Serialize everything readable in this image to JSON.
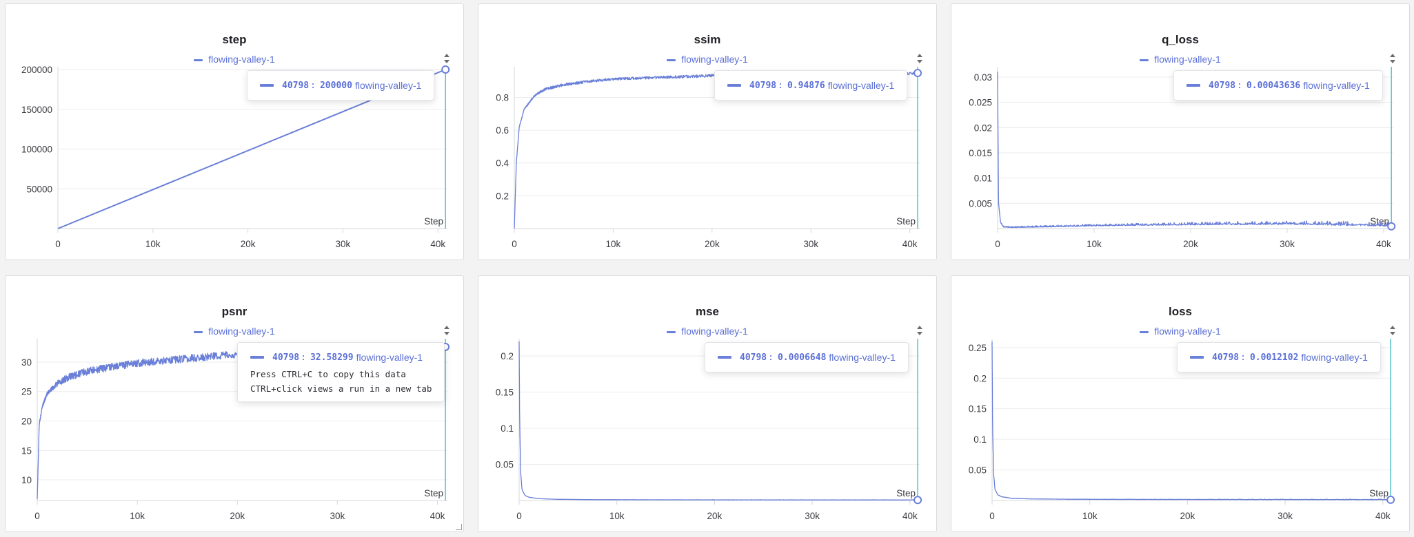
{
  "run_name": "flowing-valley-1",
  "accent_color": "#6a7fd8",
  "cursor_color": "#4fc3c8",
  "tooltip_hint": [
    "Press CTRL+C to copy this data",
    "CTRL+click views a run in a new tab"
  ],
  "chart_data": [
    {
      "id": "step",
      "type": "line",
      "title": "step",
      "xlabel": "Step",
      "ylabel": "",
      "x_ticks": [
        "0",
        "10k",
        "20k",
        "30k",
        "40k"
      ],
      "y_ticks": [
        "50000",
        "100000",
        "150000",
        "200000"
      ],
      "y_tick_values": [
        50000,
        100000,
        150000,
        200000
      ],
      "xlim": [
        0,
        41000
      ],
      "ylim": [
        0,
        200000
      ],
      "y_scale": "linear",
      "series": [
        {
          "name": "flowing-valley-1",
          "x": [
            0,
            40798
          ],
          "y": [
            0,
            200000
          ]
        }
      ],
      "shape": "linear",
      "tooltip": {
        "step": "40798",
        "value": "200000"
      }
    },
    {
      "id": "ssim",
      "type": "line",
      "title": "ssim",
      "xlabel": "Step",
      "ylabel": "",
      "x_ticks": [
        "0",
        "10k",
        "20k",
        "30k",
        "40k"
      ],
      "y_ticks": [
        "0.2",
        "0.4",
        "0.6",
        "0.8"
      ],
      "y_tick_values": [
        0.2,
        0.4,
        0.6,
        0.8
      ],
      "xlim": [
        0,
        41000
      ],
      "ylim": [
        0,
        0.97
      ],
      "y_scale": "linear",
      "series": [
        {
          "name": "flowing-valley-1",
          "x": [
            0,
            200,
            500,
            1000,
            2000,
            3000,
            5000,
            7500,
            10000,
            15000,
            20000,
            25000,
            30000,
            35000,
            40798
          ],
          "y": [
            0.0,
            0.4,
            0.62,
            0.73,
            0.81,
            0.85,
            0.88,
            0.9,
            0.915,
            0.925,
            0.935,
            0.94,
            0.943,
            0.946,
            0.94876
          ]
        }
      ],
      "shape": "rising",
      "noise": 0.012,
      "tooltip": {
        "step": "40798",
        "value": "0.94876"
      }
    },
    {
      "id": "q_loss",
      "type": "line",
      "title": "q_loss",
      "xlabel": "Step",
      "ylabel": "",
      "x_ticks": [
        "0",
        "10k",
        "20k",
        "30k",
        "40k"
      ],
      "y_ticks": [
        "0.005",
        "0.01",
        "0.015",
        "0.02",
        "0.025",
        "0.03"
      ],
      "y_tick_values": [
        0.005,
        0.01,
        0.015,
        0.02,
        0.025,
        0.03
      ],
      "xlim": [
        0,
        41000
      ],
      "ylim": [
        0,
        0.0315
      ],
      "y_scale": "linear",
      "series": [
        {
          "name": "flowing-valley-1",
          "x": [
            0,
            100,
            300,
            600,
            1500,
            5000,
            10000,
            20000,
            30000,
            40798
          ],
          "y": [
            0.031,
            0.005,
            0.0012,
            0.0003,
            0.0002,
            0.0003,
            0.0005,
            0.0007,
            0.0008,
            0.00043636
          ]
        }
      ],
      "shape": "decaying",
      "noise": 0.0009,
      "tooltip": {
        "step": "40798",
        "value": "0.00043636"
      }
    },
    {
      "id": "psnr",
      "type": "line",
      "title": "psnr",
      "xlabel": "Step",
      "ylabel": "",
      "x_ticks": [
        "0",
        "10k",
        "20k",
        "30k",
        "40k"
      ],
      "y_ticks": [
        "10",
        "15",
        "20",
        "25",
        "30"
      ],
      "y_tick_values": [
        10,
        15,
        20,
        25,
        30
      ],
      "xlim": [
        0,
        41000
      ],
      "ylim": [
        6.5,
        33.5
      ],
      "y_scale": "linear",
      "series": [
        {
          "name": "flowing-valley-1",
          "x": [
            0,
            200,
            500,
            1000,
            2000,
            3000,
            5000,
            7500,
            10000,
            15000,
            20000,
            25000,
            30000,
            35000,
            40798
          ],
          "y": [
            6.8,
            19.5,
            22.5,
            24.8,
            26.5,
            27.5,
            28.6,
            29.4,
            30.0,
            30.8,
            31.5,
            31.9,
            32.2,
            32.4,
            32.58299
          ]
        }
      ],
      "shape": "rising",
      "noise": 0.9,
      "tooltip": {
        "step": "40798",
        "value": "32.58299"
      }
    },
    {
      "id": "mse",
      "type": "line",
      "title": "mse",
      "xlabel": "Step",
      "ylabel": "",
      "x_ticks": [
        "0",
        "10k",
        "20k",
        "30k",
        "40k"
      ],
      "y_ticks": [
        "0.05",
        "0.1",
        "0.15",
        "0.2"
      ],
      "y_tick_values": [
        0.05,
        0.1,
        0.15,
        0.2
      ],
      "xlim": [
        0,
        41000
      ],
      "ylim": [
        0,
        0.22
      ],
      "y_scale": "linear",
      "series": [
        {
          "name": "flowing-valley-1",
          "x": [
            0,
            50,
            150,
            300,
            600,
            1000,
            2000,
            4000,
            8000,
            15000,
            25000,
            40798
          ],
          "y": [
            0.22,
            0.12,
            0.04,
            0.015,
            0.007,
            0.0045,
            0.0025,
            0.0016,
            0.0011,
            0.0009,
            0.0008,
            0.0006648
          ]
        }
      ],
      "shape": "decaying",
      "noise": 0.0004,
      "tooltip": {
        "step": "40798",
        "value": "0.0006648"
      }
    },
    {
      "id": "loss",
      "type": "line",
      "title": "loss",
      "xlabel": "Step",
      "ylabel": "",
      "x_ticks": [
        "0",
        "10k",
        "20k",
        "30k",
        "40k"
      ],
      "y_ticks": [
        "0.05",
        "0.1",
        "0.15",
        "0.2",
        "0.25"
      ],
      "y_tick_values": [
        0.05,
        0.1,
        0.15,
        0.2,
        0.25
      ],
      "xlim": [
        0,
        41000
      ],
      "ylim": [
        0,
        0.26
      ],
      "y_scale": "linear",
      "series": [
        {
          "name": "flowing-valley-1",
          "x": [
            0,
            50,
            150,
            300,
            600,
            1000,
            2000,
            4000,
            8000,
            15000,
            25000,
            40798
          ],
          "y": [
            0.26,
            0.13,
            0.045,
            0.018,
            0.009,
            0.006,
            0.0035,
            0.0025,
            0.0019,
            0.0016,
            0.0014,
            0.0012102
          ]
        }
      ],
      "shape": "decaying",
      "noise": 0.0012,
      "tooltip": {
        "step": "40798",
        "value": "0.0012102"
      }
    }
  ]
}
